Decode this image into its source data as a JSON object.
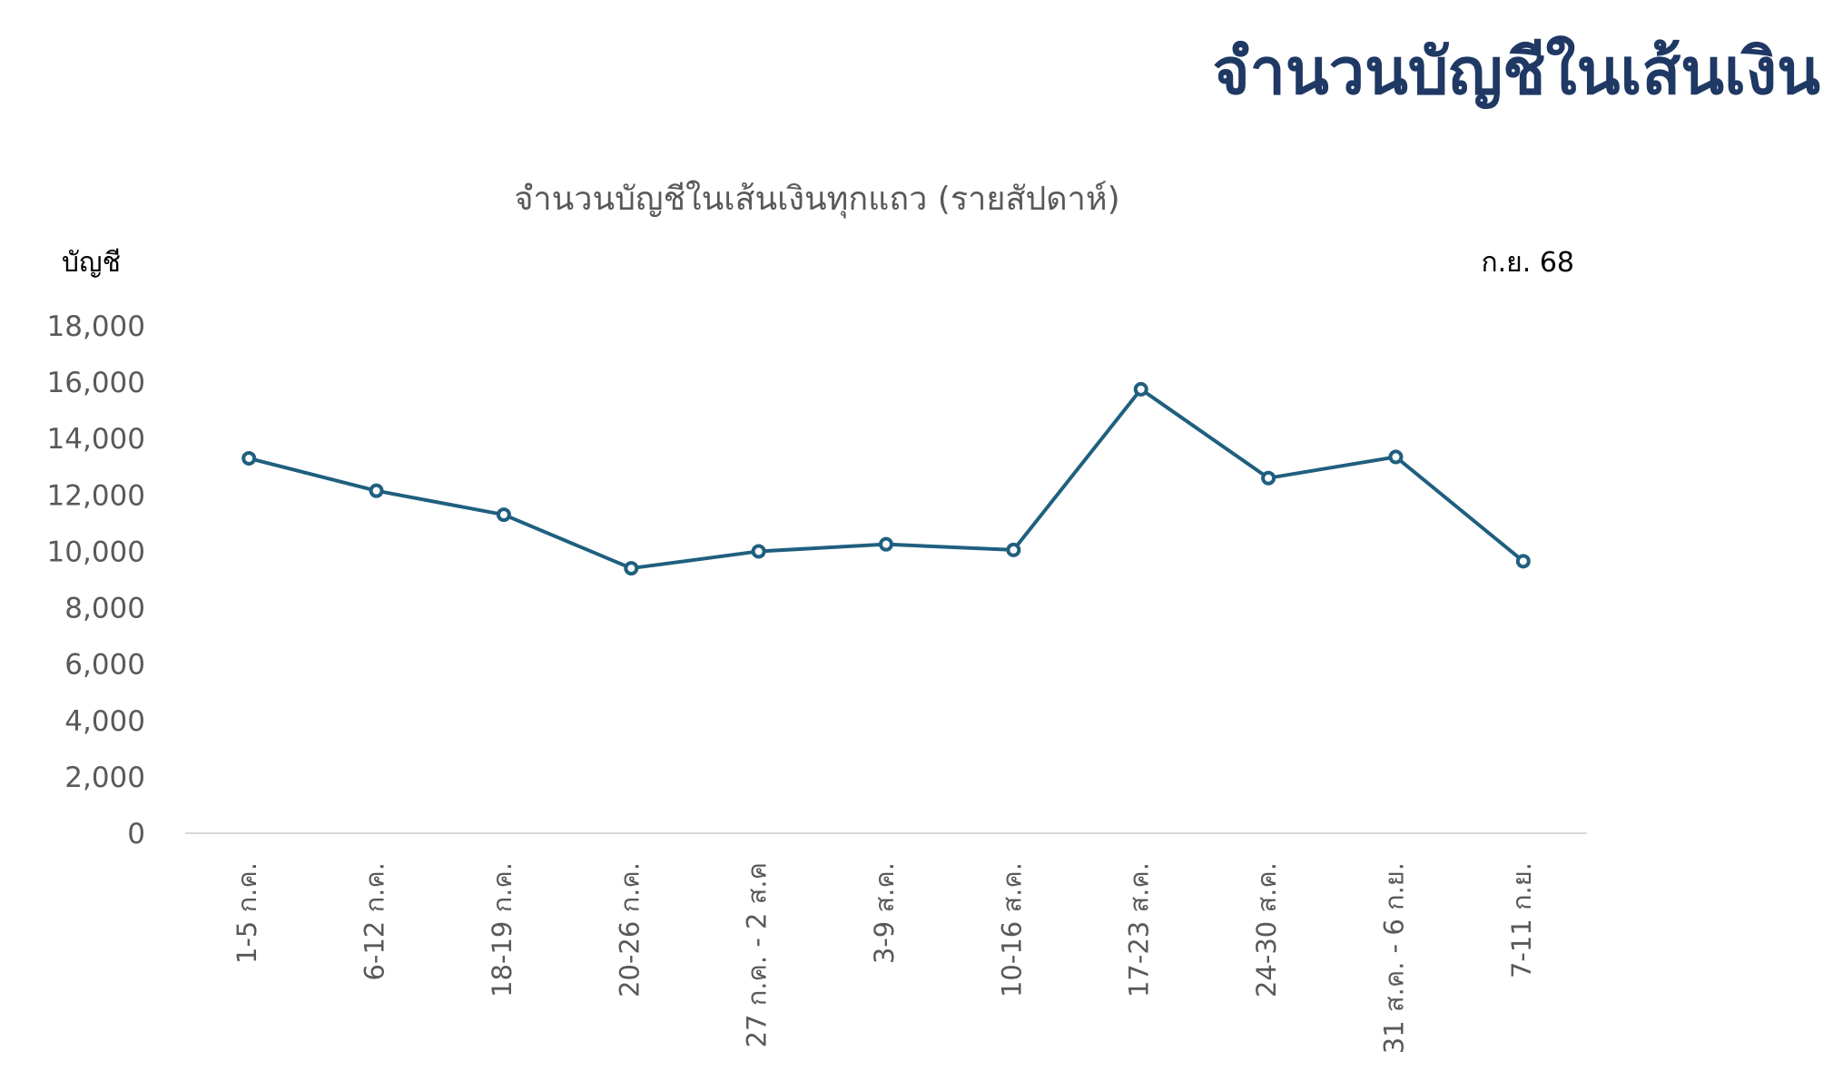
{
  "header": {
    "title": "จำนวนบัญชีในเส้นเงิน"
  },
  "chart_data": {
    "type": "line",
    "title": "จำนวนบัญชีในเส้นเงินทุกแถว (รายสัปดาห์)",
    "ylabel": "บัญชี",
    "period_note": "ก.ย. 68",
    "ylim": [
      0,
      18000
    ],
    "yticks": [
      "0",
      "2,000",
      "4,000",
      "6,000",
      "8,000",
      "10,000",
      "12,000",
      "14,000",
      "16,000",
      "18,000"
    ],
    "categories": [
      "1-5 ก.ค.",
      "6-12 ก.ค.",
      "18-19 ก.ค.",
      "20-26 ก.ค.",
      "27 ก.ค. - 2 ส.ค",
      "3-9 ส.ค.",
      "10-16 ส.ค.",
      "17-23 ส.ค.",
      "24-30 ส.ค.",
      "31 ส.ค. - 6 ก.ย.",
      "7-11 ก.ย."
    ],
    "series": [
      {
        "values": [
          13300,
          12150,
          11300,
          9400,
          10000,
          10250,
          10050,
          15750,
          12600,
          13350,
          9650
        ],
        "color": "#1f5f7f"
      }
    ],
    "grid": false,
    "legend": "none"
  }
}
